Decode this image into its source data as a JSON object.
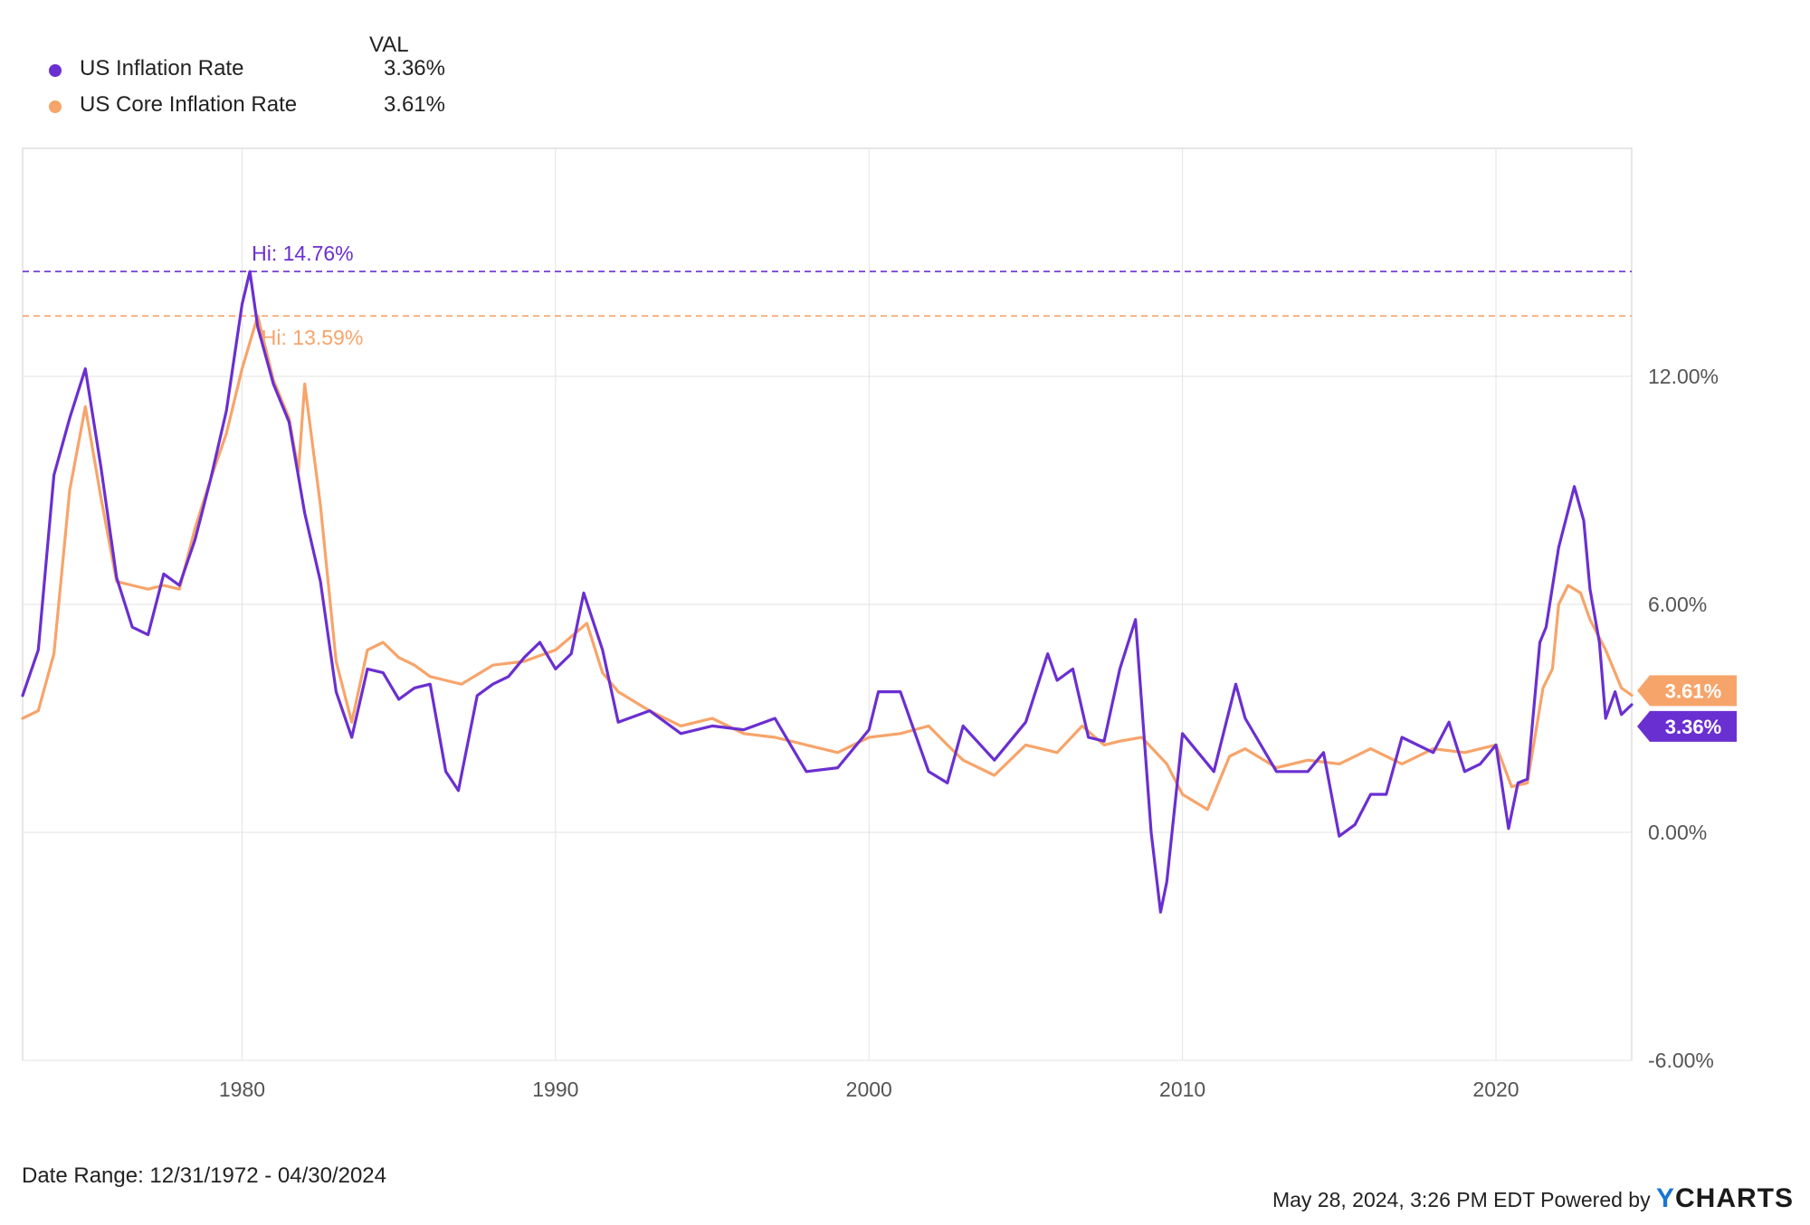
{
  "legend": {
    "header": "VAL",
    "items": [
      {
        "name": "US Inflation Rate",
        "value": "3.36%",
        "color": "#6a2fd1"
      },
      {
        "name": "US Core Inflation Rate",
        "value": "3.61%",
        "color": "#f7a46a"
      }
    ]
  },
  "footer": {
    "date_range": "Date Range: 12/31/1972 - 04/30/2024",
    "timestamp": "May 28, 2024, 3:26 PM EDT Powered by",
    "brand_y": "Y",
    "brand_rest": "CHARTS"
  },
  "chart_data": {
    "type": "line",
    "title": "",
    "xlabel": "",
    "ylabel": "",
    "xlim": [
      1973.0,
      2024.33
    ],
    "ylim": [
      -6,
      18
    ],
    "y_ticks": [
      "12.00%",
      "6.00%",
      "0.00%",
      "-6.00%"
    ],
    "y_tick_values": [
      12,
      6,
      0,
      -6
    ],
    "x_ticks": [
      "1980",
      "1990",
      "2000",
      "2010",
      "2020"
    ],
    "x_tick_values": [
      1980,
      1990,
      2000,
      2010,
      2020
    ],
    "grid": true,
    "legend_position": "top-left",
    "annotations": [
      {
        "text": "Hi: 14.76%",
        "value": 14.76,
        "x": 1980.25,
        "series": "US Inflation Rate"
      },
      {
        "text": "Hi: 13.59%",
        "value": 13.59,
        "x": 1980.5,
        "series": "US Core Inflation Rate"
      }
    ],
    "end_labels": [
      {
        "text": "3.61%",
        "value": 3.61,
        "series": "US Core Inflation Rate"
      },
      {
        "text": "3.36%",
        "value": 3.36,
        "series": "US Inflation Rate"
      }
    ],
    "series": [
      {
        "name": "US Inflation Rate",
        "color": "#6a2fd1",
        "x": [
          1973.0,
          1973.5,
          1974.0,
          1974.5,
          1975.0,
          1975.5,
          1976.0,
          1976.5,
          1977.0,
          1977.5,
          1978.0,
          1978.5,
          1979.0,
          1979.5,
          1980.0,
          1980.25,
          1980.5,
          1981.0,
          1981.5,
          1982.0,
          1982.5,
          1983.0,
          1983.5,
          1984.0,
          1984.5,
          1985.0,
          1985.5,
          1986.0,
          1986.5,
          1986.9,
          1987.5,
          1988.0,
          1988.5,
          1989.0,
          1989.5,
          1990.0,
          1990.5,
          1990.9,
          1991.5,
          1992.0,
          1993.0,
          1994.0,
          1995.0,
          1996.0,
          1997.0,
          1997.5,
          1998.0,
          1999.0,
          2000.0,
          2000.3,
          2001.0,
          2001.9,
          2002.5,
          2003.0,
          2004.0,
          2005.0,
          2005.7,
          2006.0,
          2006.5,
          2007.0,
          2007.5,
          2008.0,
          2008.5,
          2009.0,
          2009.3,
          2009.5,
          2010.0,
          2011.0,
          2011.7,
          2012.0,
          2013.0,
          2014.0,
          2014.5,
          2015.0,
          2015.5,
          2016.0,
          2016.5,
          2017.0,
          2018.0,
          2018.5,
          2019.0,
          2019.5,
          2020.0,
          2020.4,
          2020.7,
          2021.0,
          2021.4,
          2021.6,
          2022.0,
          2022.5,
          2022.8,
          2023.0,
          2023.3,
          2023.5,
          2023.8,
          2024.0,
          2024.33
        ],
        "values": [
          3.6,
          4.8,
          9.4,
          10.9,
          12.2,
          9.6,
          6.7,
          5.4,
          5.2,
          6.8,
          6.5,
          7.7,
          9.3,
          11.1,
          13.9,
          14.76,
          13.3,
          11.8,
          10.8,
          8.4,
          6.6,
          3.7,
          2.5,
          4.3,
          4.2,
          3.5,
          3.8,
          3.9,
          1.6,
          1.1,
          3.6,
          3.9,
          4.1,
          4.6,
          5.0,
          4.3,
          4.7,
          6.3,
          4.8,
          2.9,
          3.2,
          2.6,
          2.8,
          2.7,
          3.0,
          2.3,
          1.6,
          1.7,
          2.7,
          3.7,
          3.7,
          1.6,
          1.3,
          2.8,
          1.9,
          2.9,
          4.7,
          4.0,
          4.3,
          2.5,
          2.4,
          4.3,
          5.6,
          0.0,
          -2.1,
          -1.3,
          2.6,
          1.6,
          3.9,
          3.0,
          1.6,
          1.6,
          2.1,
          -0.1,
          0.2,
          1.0,
          1.0,
          2.5,
          2.1,
          2.9,
          1.6,
          1.8,
          2.3,
          0.1,
          1.3,
          1.4,
          5.0,
          5.4,
          7.5,
          9.1,
          8.2,
          6.4,
          5.0,
          3.0,
          3.7,
          3.1,
          3.36
        ]
      },
      {
        "name": "US Core Inflation Rate",
        "color": "#f7a46a",
        "x": [
          1973.0,
          1973.5,
          1974.0,
          1974.5,
          1975.0,
          1975.5,
          1976.0,
          1976.5,
          1977.0,
          1977.5,
          1978.0,
          1978.5,
          1979.0,
          1979.5,
          1980.0,
          1980.5,
          1981.0,
          1981.5,
          1981.8,
          1982.0,
          1982.5,
          1983.0,
          1983.5,
          1984.0,
          1984.5,
          1985.0,
          1985.5,
          1986.0,
          1986.5,
          1987.0,
          1988.0,
          1989.0,
          1990.0,
          1991.0,
          1991.5,
          1992.0,
          1993.0,
          1994.0,
          1995.0,
          1996.0,
          1997.0,
          1998.0,
          1999.0,
          2000.0,
          2001.0,
          2001.9,
          2002.5,
          2003.0,
          2004.0,
          2005.0,
          2006.0,
          2006.8,
          2007.5,
          2008.0,
          2008.7,
          2009.5,
          2010.0,
          2010.8,
          2011.5,
          2012.0,
          2013.0,
          2014.0,
          2015.0,
          2016.0,
          2017.0,
          2018.0,
          2019.0,
          2020.0,
          2020.5,
          2021.0,
          2021.5,
          2021.8,
          2022.0,
          2022.3,
          2022.7,
          2023.0,
          2023.5,
          2024.0,
          2024.33
        ],
        "values": [
          3.0,
          3.2,
          4.7,
          9.0,
          11.2,
          8.8,
          6.6,
          6.5,
          6.4,
          6.5,
          6.4,
          8.0,
          9.3,
          10.5,
          12.2,
          13.59,
          11.9,
          10.9,
          9.5,
          11.8,
          8.6,
          4.5,
          2.9,
          4.8,
          5.0,
          4.6,
          4.4,
          4.1,
          4.0,
          3.9,
          4.4,
          4.5,
          4.8,
          5.5,
          4.2,
          3.7,
          3.2,
          2.8,
          3.0,
          2.6,
          2.5,
          2.3,
          2.1,
          2.5,
          2.6,
          2.8,
          2.3,
          1.9,
          1.5,
          2.3,
          2.1,
          2.8,
          2.3,
          2.4,
          2.5,
          1.8,
          1.0,
          0.6,
          2.0,
          2.2,
          1.7,
          1.9,
          1.8,
          2.2,
          1.8,
          2.2,
          2.1,
          2.3,
          1.2,
          1.3,
          3.8,
          4.3,
          6.0,
          6.5,
          6.3,
          5.6,
          4.8,
          3.8,
          3.61
        ]
      }
    ]
  }
}
